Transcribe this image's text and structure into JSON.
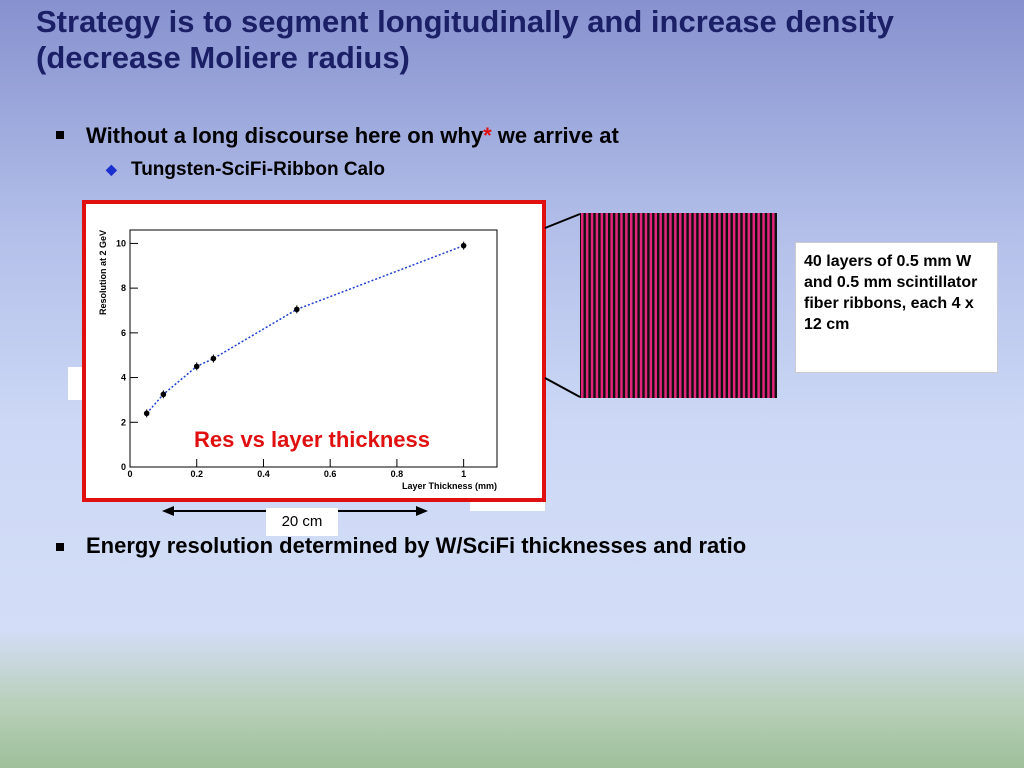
{
  "title": "Strategy is to segment longitudinally and increase density (decrease Moliere radius)",
  "bullets": [
    {
      "parts": [
        "Without a long discourse here on why",
        "*",
        " we arrive at"
      ],
      "sub": "Tungsten-SciFi-Ribbon Calo"
    },
    {
      "parts": [
        "Energy resolution determined by W/SciFi thicknesses and ratio"
      ]
    }
  ],
  "chart": {
    "type": "scatter",
    "caption": "Res vs layer thickness",
    "x_label": "Layer Thickness (mm)",
    "y_label": "Resolution at 2 GeV",
    "x": [
      0.05,
      0.1,
      0.2,
      0.25,
      0.5,
      1.0
    ],
    "values": [
      2.4,
      3.25,
      4.5,
      4.85,
      7.05,
      9.9
    ],
    "xlim": [
      0,
      1.1
    ],
    "ylim": [
      0,
      10.6
    ],
    "xticks": [
      0,
      0.2,
      0.4,
      0.6,
      0.8,
      1
    ],
    "yticks": [
      0,
      2,
      4,
      6,
      8,
      10
    ],
    "color": "#000000",
    "fit_color": "#1f3fd0"
  },
  "callout": "40 layers of 0.5 mm W and 0.5 mm scintillator fiber ribbons, each 4 x 12 cm",
  "scale_label": "20 cm"
}
